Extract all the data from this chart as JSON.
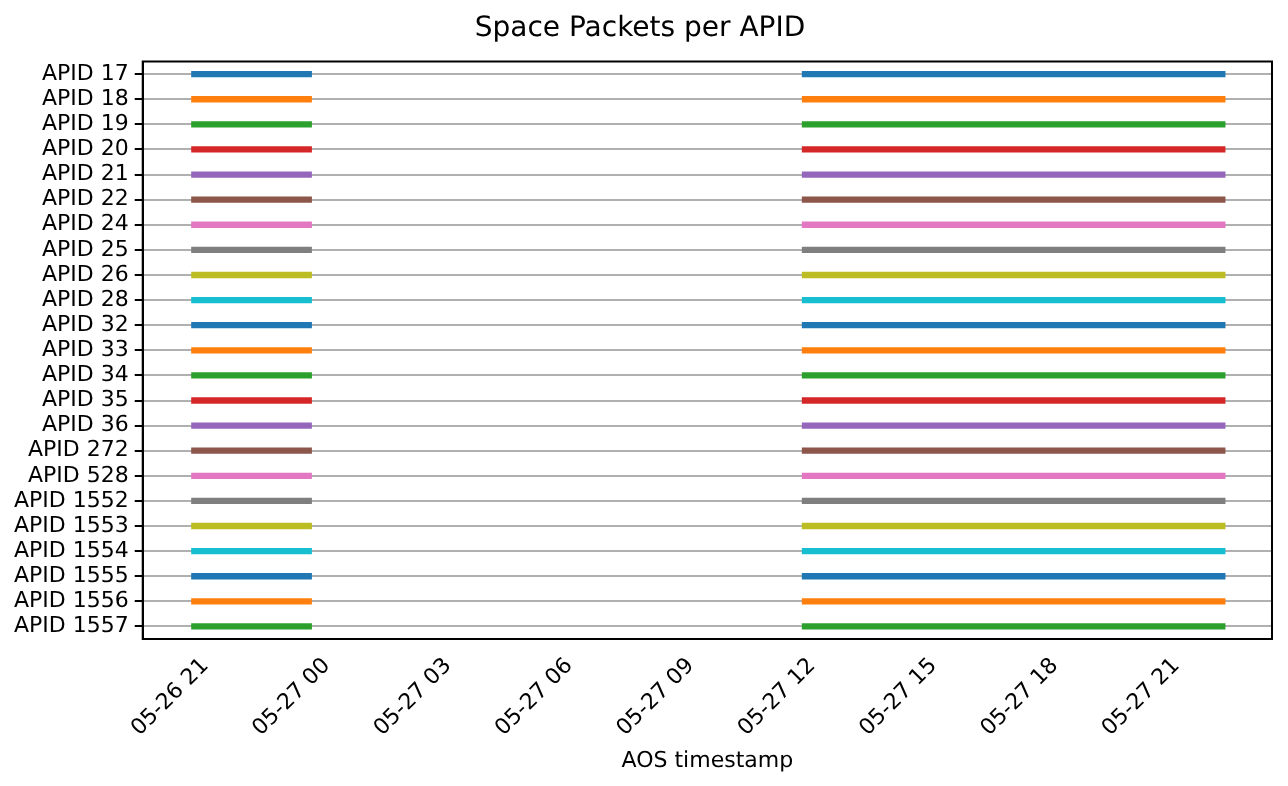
{
  "chart_data": {
    "type": "bar",
    "orientation": "horizontal",
    "title": "Space Packets per APID",
    "xlabel": "AOS timestamp",
    "categories": [
      "APID 17",
      "APID 18",
      "APID 19",
      "APID 20",
      "APID 21",
      "APID 22",
      "APID 24",
      "APID 25",
      "APID 26",
      "APID 28",
      "APID 32",
      "APID 33",
      "APID 34",
      "APID 35",
      "APID 36",
      "APID 272",
      "APID 528",
      "APID 1552",
      "APID 1553",
      "APID 1554",
      "APID 1555",
      "APID 1556",
      "APID 1557"
    ],
    "xlim": [
      "--05-26T19:27",
      "--05-27T23:22"
    ],
    "xticks": [
      {
        "value": "--05-26T21:00",
        "label": "05-26 21"
      },
      {
        "value": "--05-27T00:00",
        "label": "05-27 00"
      },
      {
        "value": "--05-27T03:00",
        "label": "05-27 03"
      },
      {
        "value": "--05-27T06:00",
        "label": "05-27 06"
      },
      {
        "value": "--05-27T09:00",
        "label": "05-27 09"
      },
      {
        "value": "--05-27T12:00",
        "label": "05-27 12"
      },
      {
        "value": "--05-27T15:00",
        "label": "05-27 15"
      },
      {
        "value": "--05-27T18:00",
        "label": "05-27 18"
      },
      {
        "value": "--05-27T21:00",
        "label": "05-27 21"
      }
    ],
    "series": [
      {
        "colors": [
          "#1f77b4",
          "#ff7f0e",
          "#2ca02c",
          "#d62728",
          "#9467bd",
          "#8c564b",
          "#e377c2",
          "#7f7f7f",
          "#bcbd22",
          "#17becf",
          "#1f77b4",
          "#ff7f0e",
          "#2ca02c",
          "#d62728",
          "#9467bd",
          "#8c564b",
          "#e377c2",
          "#7f7f7f",
          "#bcbd22",
          "#17becf",
          "#1f77b4",
          "#ff7f0e",
          "#2ca02c"
        ],
        "base": [
          11468.861,
          11468.861,
          11468.861,
          11468.861,
          11468.861,
          11468.861,
          11468.861,
          11468.861,
          11468.861,
          11468.861,
          11468.861,
          11468.861,
          11468.861,
          11468.861,
          11468.861,
          11468.861,
          11468.861,
          11468.861,
          11468.861,
          11468.861,
          11468.861,
          11468.861,
          11468.861
        ],
        "values": [
          0.123,
          0.123,
          0.123,
          0.123,
          0.123,
          0.123,
          0.123,
          0.123,
          0.123,
          0.123,
          0.123,
          0.123,
          0.123,
          0.123,
          0.123,
          0.123,
          0.123,
          0.123,
          0.123,
          0.123,
          0.123,
          0.123,
          0.123
        ]
      },
      {
        "colors": [
          "#1f77b4",
          "#ff7f0e",
          "#2ca02c",
          "#d62728",
          "#9467bd",
          "#8c564b",
          "#e377c2",
          "#7f7f7f",
          "#bcbd22",
          "#17becf",
          "#1f77b4",
          "#ff7f0e",
          "#2ca02c",
          "#d62728",
          "#9467bd",
          "#8c564b",
          "#e377c2",
          "#7f7f7f",
          "#bcbd22",
          "#17becf",
          "#1f77b4",
          "#ff7f0e",
          "#2ca02c"
        ],
        "base": [
          11469.49,
          11469.49,
          11469.49,
          11469.49,
          11469.49,
          11469.49,
          11469.49,
          11469.49,
          11469.49,
          11469.49,
          11469.49,
          11469.49,
          11469.49,
          11469.49,
          11469.49,
          11469.49,
          11469.49,
          11469.49,
          11469.49,
          11469.49,
          11469.49,
          11469.49,
          11469.49
        ],
        "values": [
          0.435,
          0.435,
          0.435,
          0.435,
          0.435,
          0.435,
          0.435,
          0.435,
          0.435,
          0.435,
          0.435,
          0.435,
          0.435,
          0.435,
          0.435,
          0.435,
          0.435,
          0.435,
          0.435,
          0.435,
          0.435,
          0.435,
          0.435
        ]
      }
    ],
    "grid": "y"
  }
}
